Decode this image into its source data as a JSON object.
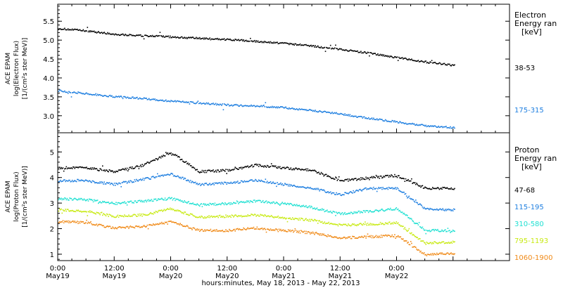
{
  "figure": {
    "xlabel": "hours:minutes, May 18, 2013 - May 22, 2013"
  },
  "colors": {
    "black": "#000000",
    "blue": "#1f7fe0",
    "cyan": "#1fe0d2",
    "yellowgreen": "#c8ea14",
    "orange": "#f08a18"
  },
  "chart_data": [
    {
      "type": "scatter",
      "panel": "electron",
      "title": "",
      "ylabel": [
        "ACE EPAM",
        "log(Electron Flux)",
        "[1/(cm²s ster MeV)]"
      ],
      "legend_title": [
        "Electron",
        "Energy ran",
        "[keV]"
      ],
      "ylim": [
        2.55,
        5.95
      ],
      "yticks": [
        3.0,
        3.5,
        4.0,
        4.5,
        5.0,
        5.5
      ],
      "ytick_labels": [
        "3.0",
        "3.5",
        "4.0",
        "4.5",
        "5.0",
        "5.5"
      ],
      "x_unit": "hours since May 19 00:00",
      "xlim": [
        0,
        96
      ],
      "x": [
        0,
        6,
        12,
        18,
        24,
        30,
        36,
        42,
        48,
        54,
        60,
        66,
        72,
        78,
        84
      ],
      "series": [
        {
          "name": "38-53",
          "color": "black",
          "values": [
            5.32,
            5.26,
            5.17,
            5.13,
            5.1,
            5.06,
            5.03,
            4.98,
            4.93,
            4.86,
            4.77,
            4.67,
            4.55,
            4.44,
            4.35
          ]
        },
        {
          "name": "175-315",
          "color": "blue",
          "values": [
            3.68,
            3.6,
            3.52,
            3.47,
            3.4,
            3.35,
            3.3,
            3.27,
            3.23,
            3.15,
            3.06,
            2.95,
            2.85,
            2.75,
            2.7
          ]
        }
      ]
    },
    {
      "type": "scatter",
      "panel": "proton",
      "title": "",
      "ylabel": [
        "ACE EPAM",
        "log(Proton Flux)",
        "[1/(cm²s ster MeV)]"
      ],
      "legend_title": [
        "Proton",
        "Energy ran",
        "[keV]"
      ],
      "ylim": [
        0.75,
        5.75
      ],
      "yticks": [
        1,
        2,
        3,
        4,
        5
      ],
      "ytick_labels": [
        "1",
        "2",
        "3",
        "4",
        "5"
      ],
      "x_unit": "hours since May 19 00:00",
      "xlim": [
        0,
        96
      ],
      "x": [
        0,
        6,
        12,
        18,
        24,
        30,
        36,
        42,
        48,
        54,
        60,
        66,
        72,
        78,
        84
      ],
      "series": [
        {
          "name": "47-68",
          "color": "black",
          "values": [
            4.4,
            4.4,
            4.25,
            4.5,
            5.0,
            4.25,
            4.3,
            4.5,
            4.4,
            4.3,
            3.9,
            4.0,
            4.1,
            3.6,
            3.6
          ]
        },
        {
          "name": "115-195",
          "color": "blue",
          "values": [
            3.9,
            3.9,
            3.75,
            3.95,
            4.15,
            3.75,
            3.8,
            3.9,
            3.75,
            3.6,
            3.35,
            3.6,
            3.6,
            2.8,
            2.75
          ]
        },
        {
          "name": "310-580",
          "color": "cyan",
          "values": [
            3.2,
            3.15,
            3.0,
            3.1,
            3.2,
            2.95,
            3.0,
            3.1,
            3.0,
            2.85,
            2.6,
            2.7,
            2.8,
            1.95,
            1.95
          ]
        },
        {
          "name": "795-1193",
          "color": "yellowgreen",
          "values": [
            2.75,
            2.7,
            2.5,
            2.55,
            2.8,
            2.45,
            2.5,
            2.55,
            2.45,
            2.35,
            2.15,
            2.2,
            2.25,
            1.45,
            1.5
          ]
        },
        {
          "name": "1060-1900",
          "color": "orange",
          "values": [
            2.3,
            2.25,
            2.05,
            2.1,
            2.3,
            1.95,
            1.95,
            2.05,
            1.95,
            1.85,
            1.65,
            1.7,
            1.75,
            1.0,
            1.05
          ]
        }
      ]
    }
  ],
  "xaxis": {
    "ticks": [
      0,
      12,
      24,
      36,
      48,
      60,
      72,
      84
    ],
    "tick_labels": [
      [
        "0:00",
        "May19"
      ],
      [
        "12:00",
        "May19"
      ],
      [
        "0:00",
        "May20"
      ],
      [
        "12:00",
        "May20"
      ],
      [
        "0:00",
        "May21"
      ],
      [
        "12:00",
        "May21"
      ],
      [
        "0:00",
        "May22"
      ],
      [
        "",
        ""
      ]
    ]
  }
}
